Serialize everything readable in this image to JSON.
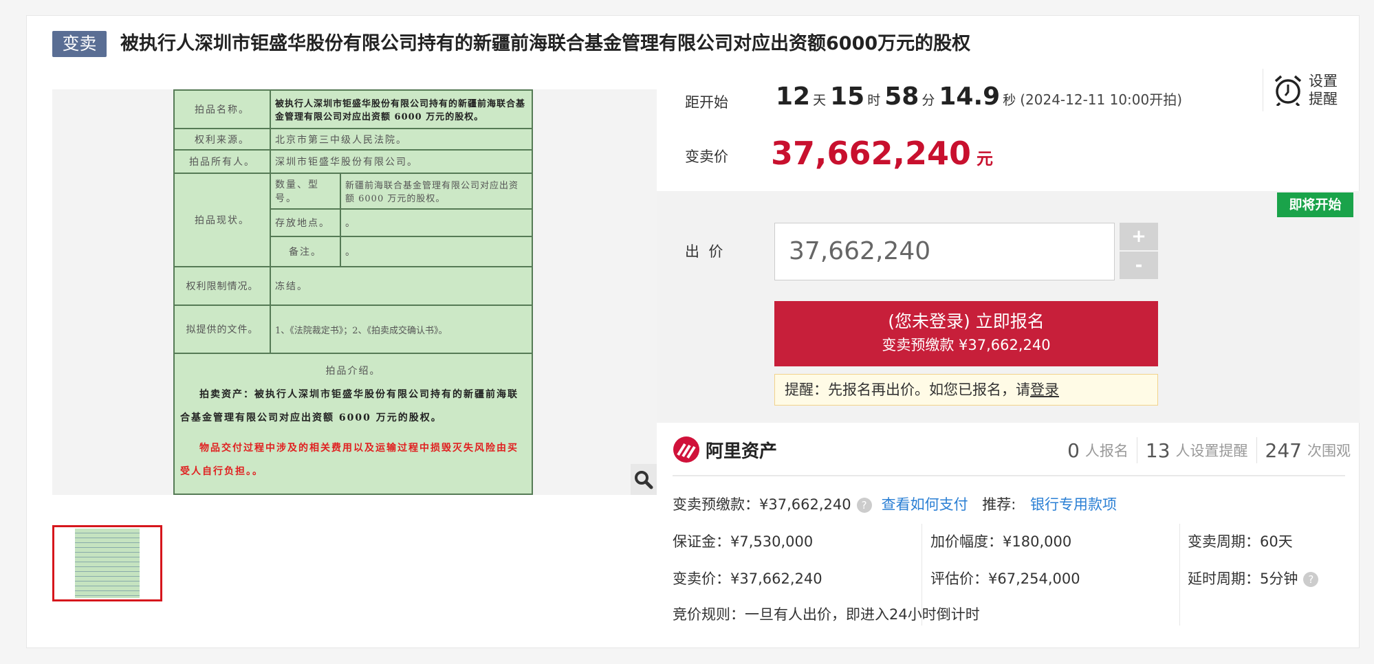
{
  "header": {
    "tag": "变卖",
    "title": "被执行人深圳市钜盛华股份有限公司持有的新疆前海联合基金管理有限公司对应出资额6000万元的股权"
  },
  "document": {
    "rows": [
      {
        "label": "拍品名称。",
        "value": "被执行人深圳市钜盛华股份有限公司持有的新疆前海联合基金管理有限公司对应出资额 6000 万元的股权。"
      },
      {
        "label": "权利来源。",
        "value": "北京市第三中级人民法院。"
      },
      {
        "label": "拍品所有人。",
        "value": "深圳市钜盛华股份有限公司。"
      },
      {
        "label": "拍品现状。",
        "sub": [
          {
            "label": "数量、型号。",
            "value": "新疆前海联合基金管理有限公司对应出资额 6000 万元的股权。"
          },
          {
            "label": "存放地点。",
            "value": "。"
          },
          {
            "label": "备注。",
            "value": "。"
          }
        ]
      },
      {
        "label": "权利限制情况。",
        "value": "冻结。"
      },
      {
        "label": "拟提供的文件。",
        "value": "1、《法院裁定书》；2、《拍卖成交确认书》。"
      }
    ],
    "intro_title": "拍品介绍。",
    "intro_bold": "拍卖资产：被执行人深圳市钜盛华股份有限公司持有的新疆前海联合基金管理有限公司对应出资额 6000 万元的股权。",
    "intro_red": "物品交付过程中涉及的相关费用以及运输过程中损毁灭失风险由买受人自行负担。。"
  },
  "countdown": {
    "label": "距开始",
    "days": "12",
    "days_unit": "天",
    "hours": "15",
    "hours_unit": "时",
    "minutes": "58",
    "minutes_unit": "分",
    "seconds": "14.9",
    "seconds_unit": "秒",
    "start": "(2024-12-11 10:00开拍)"
  },
  "reminder": {
    "line1": "设置",
    "line2": "提醒"
  },
  "price": {
    "label": "变卖价",
    "value": "37,662,240",
    "unit": "元"
  },
  "status_badge": "即将开始",
  "bid": {
    "label": "出  价",
    "value": "37,662,240",
    "plus": "+",
    "minus": "-"
  },
  "signup": {
    "line1": "(您未登录) 立即报名",
    "line2": "变卖预缴款 ¥37,662,240"
  },
  "notice": {
    "text": "提醒：先报名再出价。如您已报名，请",
    "link": "登录"
  },
  "brand": "阿里资产",
  "stats": [
    {
      "n": "0",
      "u": "人报名"
    },
    {
      "n": "13",
      "u": "人设置提醒"
    },
    {
      "n": "247",
      "u": "次围观"
    }
  ],
  "info": {
    "deposit": "变卖预缴款：¥37,662,240",
    "how_pay": "查看如何支付",
    "recommend": "推荐:",
    "bank": "银行专用款项",
    "margin": "保证金：¥7,530,000",
    "increment": "加价幅度：¥180,000",
    "period": "变卖周期：60天",
    "sale_price": "变卖价：¥37,662,240",
    "appraisal": "评估价：¥67,254,000",
    "delay": "延时周期：5分钟",
    "rule": "竞价规则：一旦有人出价，即进入24小时倒计时",
    "help": "?"
  },
  "colors": {
    "accent": "#c71f3a",
    "tag": "#5a6e94",
    "badge": "#1aa34a",
    "link": "#2a7fd4"
  }
}
